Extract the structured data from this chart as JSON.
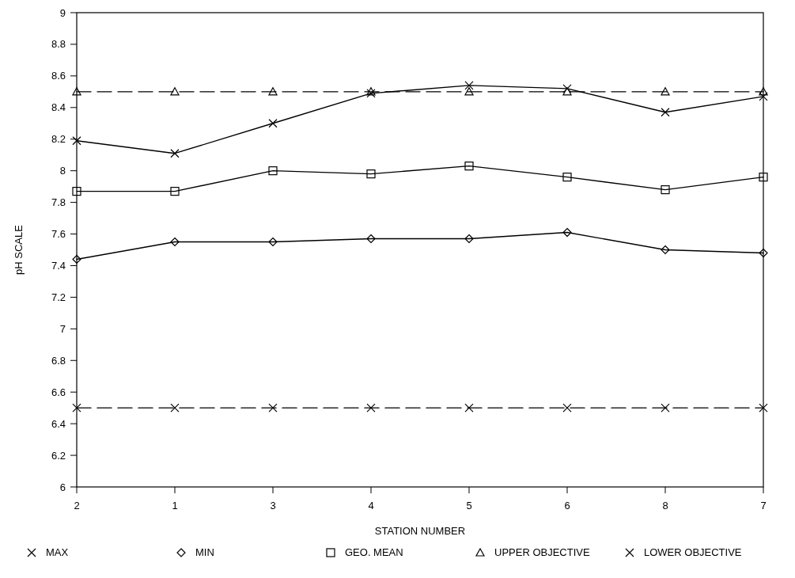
{
  "chart_data": {
    "type": "line",
    "xlabel": "STATION NUMBER",
    "ylabel": "pH SCALE",
    "categories": [
      "2",
      "1",
      "3",
      "4",
      "5",
      "6",
      "8",
      "7"
    ],
    "ylim": [
      6,
      9
    ],
    "yticks": [
      6,
      6.2,
      6.4,
      6.6,
      6.8,
      7,
      7.2,
      7.4,
      7.6,
      7.8,
      8,
      8.2,
      8.4,
      8.6,
      8.8,
      9
    ],
    "grid": false,
    "legend": "bottom",
    "series": [
      {
        "name": "MAX",
        "color": "#000000",
        "marker": "cross",
        "line_style": "solid",
        "values": [
          8.19,
          8.11,
          8.3,
          8.49,
          8.54,
          8.52,
          8.37,
          8.47
        ]
      },
      {
        "name": "MIN",
        "color": "#000000",
        "marker": "diamond",
        "line_style": "solid",
        "values": [
          7.44,
          7.55,
          7.55,
          7.57,
          7.57,
          7.61,
          7.5,
          7.48
        ]
      },
      {
        "name": "GEO. MEAN",
        "color": "#000000",
        "marker": "square",
        "line_style": "solid",
        "values": [
          7.87,
          7.87,
          8.0,
          7.98,
          8.03,
          7.96,
          7.88,
          7.96
        ]
      },
      {
        "name": "UPPER OBJECTIVE",
        "color": "#000000",
        "marker": "triangle",
        "line_style": "dashed",
        "values": [
          8.5,
          8.5,
          8.5,
          8.5,
          8.5,
          8.5,
          8.5,
          8.5
        ]
      },
      {
        "name": "LOWER OBJECTIVE",
        "color": "#000000",
        "marker": "cross",
        "line_style": "dashed",
        "values": [
          6.5,
          6.5,
          6.5,
          6.5,
          6.5,
          6.5,
          6.5,
          6.5
        ]
      }
    ]
  }
}
